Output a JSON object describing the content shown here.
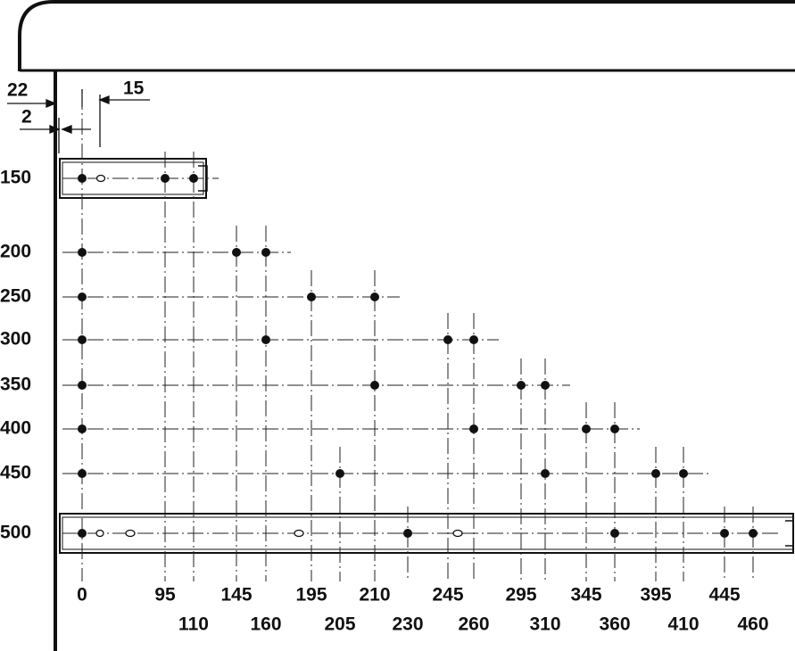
{
  "dimensions": {
    "top_left": "22",
    "top_right": "15",
    "bottom_left": "2"
  },
  "row_labels": [
    "150",
    "200",
    "250",
    "300",
    "350",
    "400",
    "450",
    "500"
  ],
  "column_labels_upper": [
    "0",
    "95",
    "145",
    "195",
    "210",
    "245",
    "295",
    "345",
    "395",
    "445"
  ],
  "column_labels_lower": [
    "110",
    "160",
    "205",
    "230",
    "260",
    "310",
    "360",
    "410",
    "460"
  ]
}
